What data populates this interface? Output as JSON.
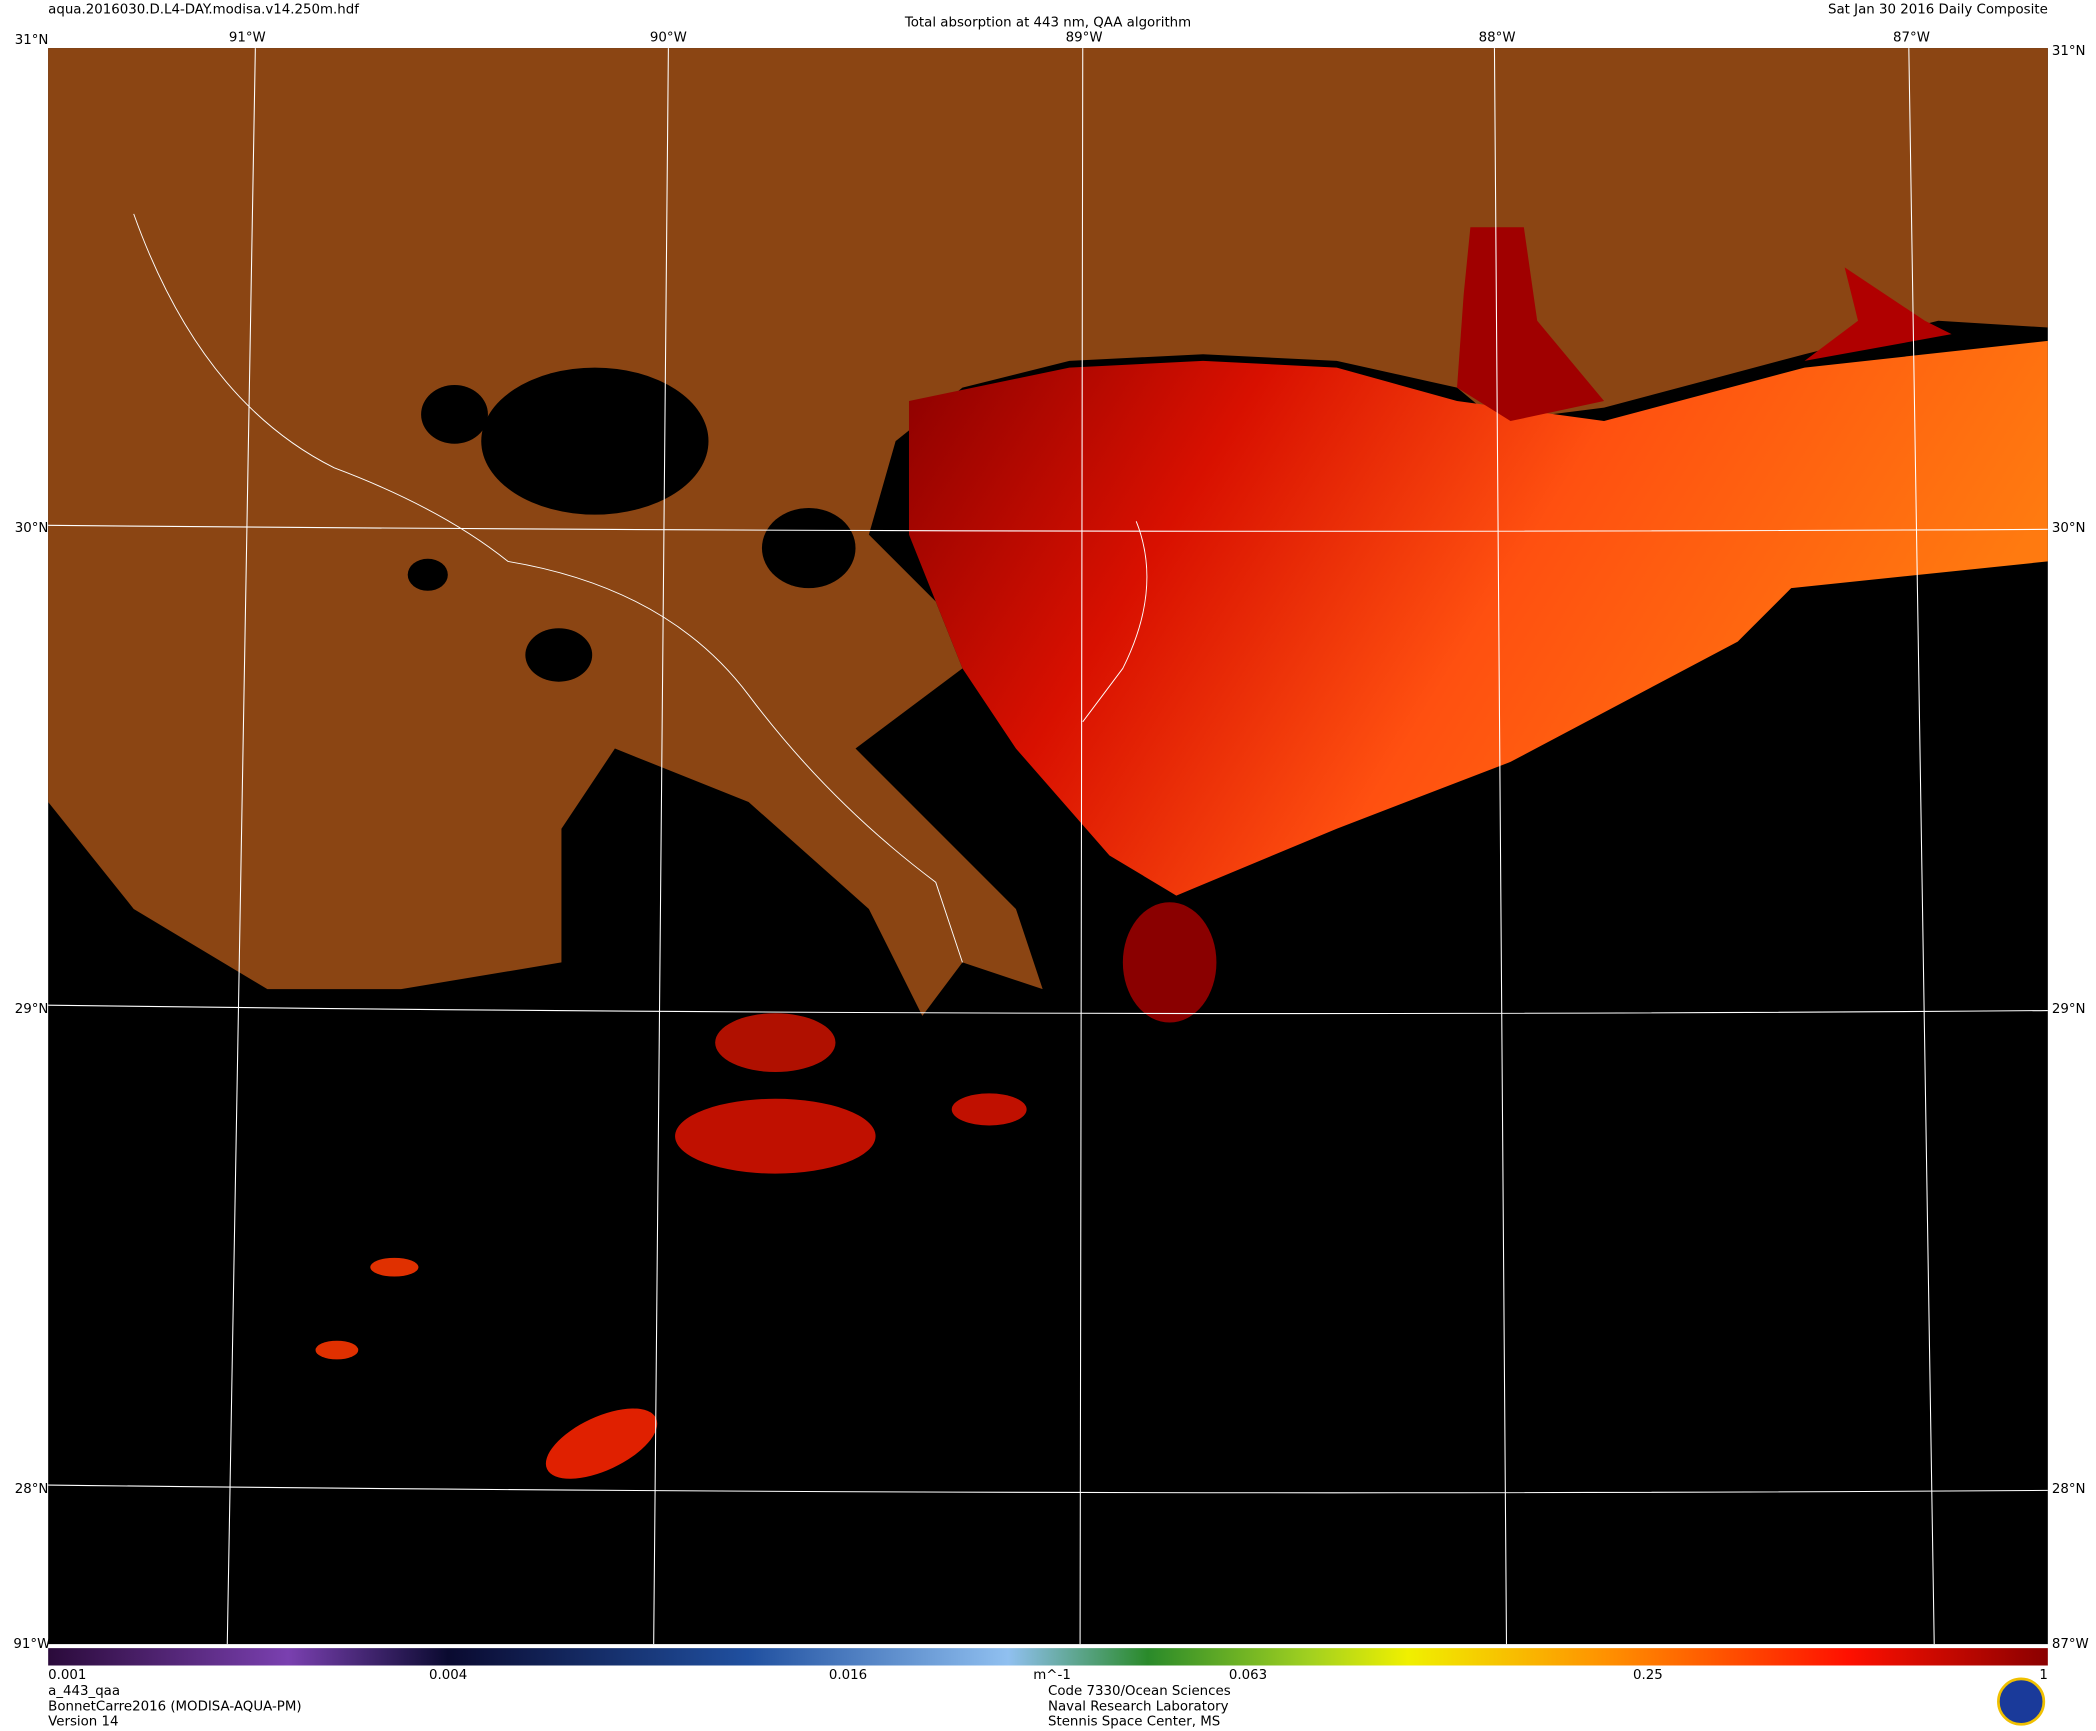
{
  "header": {
    "filename": "aqua.2016030.D.L4-DAY.modisa.v14.250m.hdf",
    "title": "Total absorption at 443 nm, QAA algorithm",
    "date": "Sat Jan 30 2016 Daily Composite"
  },
  "graticule": {
    "longitudes": [
      "91°W",
      "90°W",
      "89°W",
      "88°W",
      "87°W"
    ],
    "latitudes": [
      "31°N",
      "30°N",
      "29°N",
      "28°N"
    ]
  },
  "colorbar": {
    "ticks": [
      "0.001",
      "0.004",
      "0.016",
      "0.063",
      "0.25",
      "1"
    ],
    "unit": "m^-1"
  },
  "footer": {
    "left": [
      "a_443_qaa",
      "BonnetCarre2016 (MODISA-AQUA-PM)",
      "Version 14"
    ],
    "center": [
      "Code 7330/Ocean Sciences",
      "Naval Research Laboratory",
      "Stennis Space Center, MS"
    ]
  }
}
